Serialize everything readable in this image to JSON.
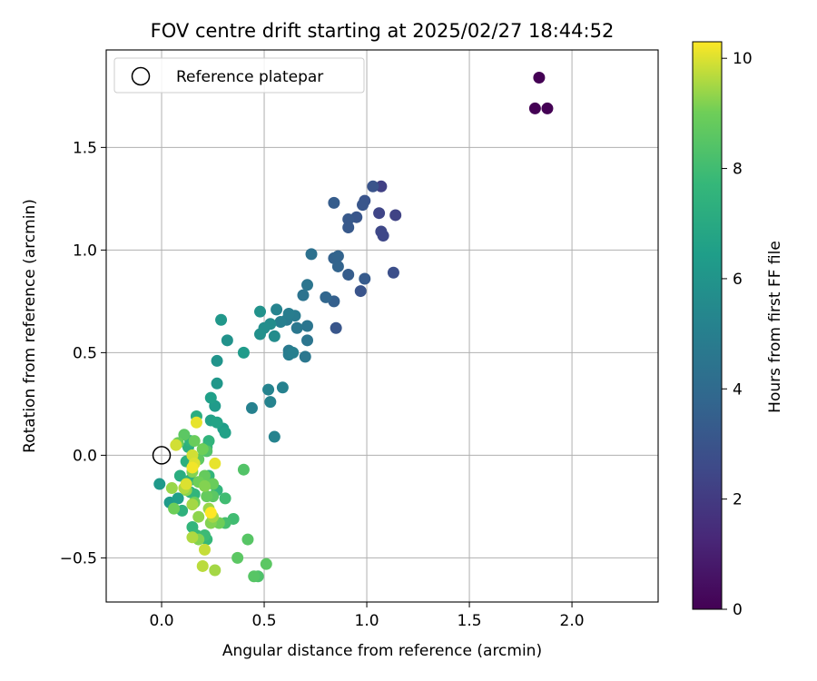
{
  "chart_data": {
    "type": "scatter",
    "title": "FOV centre drift starting at 2025/02/27 18:44:52",
    "xlabel": "Angular distance from reference (arcmin)",
    "ylabel": "Rotation from reference (arcmin)",
    "xlim": [
      -0.27,
      2.42
    ],
    "ylim": [
      -0.715,
      1.975
    ],
    "xticks": [
      0.0,
      0.5,
      1.0,
      1.5,
      2.0
    ],
    "xtick_labels": [
      "0.0",
      "0.5",
      "1.0",
      "1.5",
      "2.0"
    ],
    "yticks": [
      -0.5,
      0.0,
      0.5,
      1.0,
      1.5
    ],
    "ytick_labels": [
      "−0.5",
      "0.0",
      "0.5",
      "1.0",
      "1.5"
    ],
    "grid": true,
    "legend_position": "upper-left",
    "legend_entries": [
      "Reference platepar"
    ],
    "reference_point": {
      "x": 0.0,
      "y": 0.0
    },
    "colorbar": {
      "label": "Hours from first FF file",
      "range": [
        0,
        10.3
      ],
      "ticks": [
        0,
        2,
        4,
        6,
        8,
        10
      ],
      "tick_labels": [
        "0",
        "2",
        "4",
        "6",
        "8",
        "10"
      ],
      "colormap": "viridis"
    },
    "points": [
      {
        "x": 1.84,
        "y": 1.84,
        "h": 0.0
      },
      {
        "x": 1.82,
        "y": 1.69,
        "h": 0.0
      },
      {
        "x": 1.88,
        "y": 1.69,
        "h": 0.0
      },
      {
        "x": 1.07,
        "y": 1.31,
        "h": 2.2
      },
      {
        "x": 1.14,
        "y": 1.17,
        "h": 2.3
      },
      {
        "x": 1.06,
        "y": 1.18,
        "h": 2.4
      },
      {
        "x": 1.07,
        "y": 1.09,
        "h": 2.5
      },
      {
        "x": 1.08,
        "y": 1.07,
        "h": 2.5
      },
      {
        "x": 1.13,
        "y": 0.89,
        "h": 2.8
      },
      {
        "x": 1.03,
        "y": 1.31,
        "h": 3.0
      },
      {
        "x": 0.99,
        "y": 1.24,
        "h": 3.0
      },
      {
        "x": 0.98,
        "y": 1.22,
        "h": 3.1
      },
      {
        "x": 0.95,
        "y": 1.16,
        "h": 3.1
      },
      {
        "x": 0.91,
        "y": 1.15,
        "h": 3.2
      },
      {
        "x": 0.91,
        "y": 1.11,
        "h": 3.2
      },
      {
        "x": 0.84,
        "y": 1.23,
        "h": 3.4
      },
      {
        "x": 0.97,
        "y": 0.8,
        "h": 3.0
      },
      {
        "x": 0.99,
        "y": 0.86,
        "h": 3.3
      },
      {
        "x": 0.91,
        "y": 0.88,
        "h": 3.4
      },
      {
        "x": 0.85,
        "y": 0.62,
        "h": 3.1
      },
      {
        "x": 0.84,
        "y": 0.96,
        "h": 3.6
      },
      {
        "x": 0.86,
        "y": 0.97,
        "h": 3.7
      },
      {
        "x": 0.86,
        "y": 0.92,
        "h": 3.7
      },
      {
        "x": 0.8,
        "y": 0.77,
        "h": 3.8
      },
      {
        "x": 0.84,
        "y": 0.75,
        "h": 3.5
      },
      {
        "x": 0.73,
        "y": 0.98,
        "h": 4.3
      },
      {
        "x": 0.71,
        "y": 0.83,
        "h": 4.5
      },
      {
        "x": 0.69,
        "y": 0.78,
        "h": 4.4
      },
      {
        "x": 0.71,
        "y": 0.63,
        "h": 4.5
      },
      {
        "x": 0.71,
        "y": 0.56,
        "h": 4.5
      },
      {
        "x": 0.7,
        "y": 0.48,
        "h": 4.6
      },
      {
        "x": 0.66,
        "y": 0.62,
        "h": 4.6
      },
      {
        "x": 0.65,
        "y": 0.68,
        "h": 4.8
      },
      {
        "x": 0.62,
        "y": 0.69,
        "h": 4.9
      },
      {
        "x": 0.61,
        "y": 0.66,
        "h": 4.8
      },
      {
        "x": 0.58,
        "y": 0.65,
        "h": 5.0
      },
      {
        "x": 0.62,
        "y": 0.51,
        "h": 4.7
      },
      {
        "x": 0.62,
        "y": 0.49,
        "h": 4.9
      },
      {
        "x": 0.64,
        "y": 0.5,
        "h": 5.0
      },
      {
        "x": 0.56,
        "y": 0.71,
        "h": 5.2
      },
      {
        "x": 0.59,
        "y": 0.33,
        "h": 5.1
      },
      {
        "x": 0.52,
        "y": 0.32,
        "h": 5.2
      },
      {
        "x": 0.53,
        "y": 0.26,
        "h": 5.2
      },
      {
        "x": 0.44,
        "y": 0.23,
        "h": 5.1
      },
      {
        "x": 0.55,
        "y": 0.09,
        "h": 5.2
      },
      {
        "x": 0.55,
        "y": 0.58,
        "h": 5.6
      },
      {
        "x": 0.53,
        "y": 0.64,
        "h": 5.6
      },
      {
        "x": 0.5,
        "y": 0.62,
        "h": 5.7
      },
      {
        "x": 0.48,
        "y": 0.59,
        "h": 5.8
      },
      {
        "x": 0.48,
        "y": 0.7,
        "h": 5.9
      },
      {
        "x": 0.32,
        "y": 0.56,
        "h": 5.9
      },
      {
        "x": 0.29,
        "y": 0.66,
        "h": 6.1
      },
      {
        "x": 0.4,
        "y": 0.5,
        "h": 6.3
      },
      {
        "x": 0.27,
        "y": 0.46,
        "h": 6.0
      },
      {
        "x": 0.27,
        "y": 0.35,
        "h": 6.1
      },
      {
        "x": 0.26,
        "y": 0.24,
        "h": 6.3
      },
      {
        "x": 0.24,
        "y": 0.28,
        "h": 6.5
      },
      {
        "x": 0.24,
        "y": 0.17,
        "h": 6.6
      },
      {
        "x": 0.27,
        "y": 0.16,
        "h": 6.7
      },
      {
        "x": 0.3,
        "y": 0.13,
        "h": 6.4
      },
      {
        "x": 0.31,
        "y": 0.11,
        "h": 6.6
      },
      {
        "x": -0.01,
        "y": -0.14,
        "h": 6.2
      },
      {
        "x": 0.04,
        "y": -0.23,
        "h": 6.3
      },
      {
        "x": 0.08,
        "y": -0.21,
        "h": 6.5
      },
      {
        "x": 0.17,
        "y": 0.19,
        "h": 7.2
      },
      {
        "x": 0.13,
        "y": 0.04,
        "h": 7.3
      },
      {
        "x": 0.14,
        "y": 0.07,
        "h": 7.5
      },
      {
        "x": 0.09,
        "y": -0.1,
        "h": 7.2
      },
      {
        "x": 0.12,
        "y": -0.03,
        "h": 7.3
      },
      {
        "x": 0.14,
        "y": -0.12,
        "h": 7.4
      },
      {
        "x": 0.16,
        "y": -0.19,
        "h": 7.6
      },
      {
        "x": 0.14,
        "y": -0.18,
        "h": 7.5
      },
      {
        "x": 0.1,
        "y": -0.27,
        "h": 7.4
      },
      {
        "x": 0.23,
        "y": 0.07,
        "h": 7.5
      },
      {
        "x": 0.22,
        "y": 0.04,
        "h": 7.6
      },
      {
        "x": 0.23,
        "y": -0.1,
        "h": 7.6
      },
      {
        "x": 0.27,
        "y": -0.17,
        "h": 7.6
      },
      {
        "x": 0.15,
        "y": -0.35,
        "h": 7.6
      },
      {
        "x": 0.17,
        "y": -0.39,
        "h": 7.8
      },
      {
        "x": 0.22,
        "y": -0.41,
        "h": 7.7
      },
      {
        "x": 0.21,
        "y": -0.39,
        "h": 7.9
      },
      {
        "x": 0.31,
        "y": -0.21,
        "h": 8.0
      },
      {
        "x": 0.35,
        "y": -0.31,
        "h": 8.0
      },
      {
        "x": 0.31,
        "y": -0.33,
        "h": 8.1
      },
      {
        "x": 0.4,
        "y": -0.07,
        "h": 8.4
      },
      {
        "x": 0.42,
        "y": -0.41,
        "h": 8.5
      },
      {
        "x": 0.37,
        "y": -0.5,
        "h": 8.6
      },
      {
        "x": 0.45,
        "y": -0.59,
        "h": 8.5
      },
      {
        "x": 0.47,
        "y": -0.59,
        "h": 8.3
      },
      {
        "x": 0.51,
        "y": -0.53,
        "h": 8.6
      },
      {
        "x": 0.11,
        "y": 0.1,
        "h": 8.6
      },
      {
        "x": 0.08,
        "y": 0.06,
        "h": 8.9
      },
      {
        "x": 0.16,
        "y": 0.07,
        "h": 8.9
      },
      {
        "x": 0.2,
        "y": 0.03,
        "h": 9.0
      },
      {
        "x": 0.22,
        "y": 0.02,
        "h": 8.4
      },
      {
        "x": 0.18,
        "y": -0.02,
        "h": 8.7
      },
      {
        "x": 0.21,
        "y": -0.1,
        "h": 8.8
      },
      {
        "x": 0.15,
        "y": -0.08,
        "h": 9.2
      },
      {
        "x": 0.18,
        "y": -0.13,
        "h": 9.0
      },
      {
        "x": 0.21,
        "y": -0.15,
        "h": 9.2
      },
      {
        "x": 0.25,
        "y": -0.14,
        "h": 8.9
      },
      {
        "x": 0.25,
        "y": -0.2,
        "h": 8.6
      },
      {
        "x": 0.22,
        "y": -0.2,
        "h": 8.8
      },
      {
        "x": 0.16,
        "y": -0.23,
        "h": 9.0
      },
      {
        "x": 0.05,
        "y": -0.16,
        "h": 9.4
      },
      {
        "x": 0.06,
        "y": -0.26,
        "h": 9.0
      },
      {
        "x": 0.11,
        "y": -0.16,
        "h": 9.6
      },
      {
        "x": 0.12,
        "y": -0.17,
        "h": 9.3
      },
      {
        "x": 0.15,
        "y": -0.24,
        "h": 9.5
      },
      {
        "x": 0.18,
        "y": -0.3,
        "h": 9.3
      },
      {
        "x": 0.23,
        "y": -0.26,
        "h": 9.4
      },
      {
        "x": 0.24,
        "y": -0.33,
        "h": 9.2
      },
      {
        "x": 0.25,
        "y": -0.3,
        "h": 9.5
      },
      {
        "x": 0.28,
        "y": -0.33,
        "h": 9.0
      },
      {
        "x": 0.18,
        "y": -0.41,
        "h": 9.2
      },
      {
        "x": 0.15,
        "y": -0.4,
        "h": 9.6
      },
      {
        "x": 0.21,
        "y": -0.46,
        "h": 9.8
      },
      {
        "x": 0.2,
        "y": -0.54,
        "h": 9.7
      },
      {
        "x": 0.26,
        "y": -0.56,
        "h": 9.5
      },
      {
        "x": 0.07,
        "y": 0.05,
        "h": 9.9
      },
      {
        "x": 0.17,
        "y": 0.16,
        "h": 10.1
      },
      {
        "x": 0.15,
        "y": 0.0,
        "h": 9.9
      },
      {
        "x": 0.12,
        "y": -0.14,
        "h": 10.0
      },
      {
        "x": 0.15,
        "y": -0.06,
        "h": 10.2
      },
      {
        "x": 0.26,
        "y": -0.04,
        "h": 10.1
      },
      {
        "x": 0.24,
        "y": -0.28,
        "h": 10.3
      },
      {
        "x": 0.16,
        "y": -0.04,
        "h": 10.0
      }
    ]
  }
}
